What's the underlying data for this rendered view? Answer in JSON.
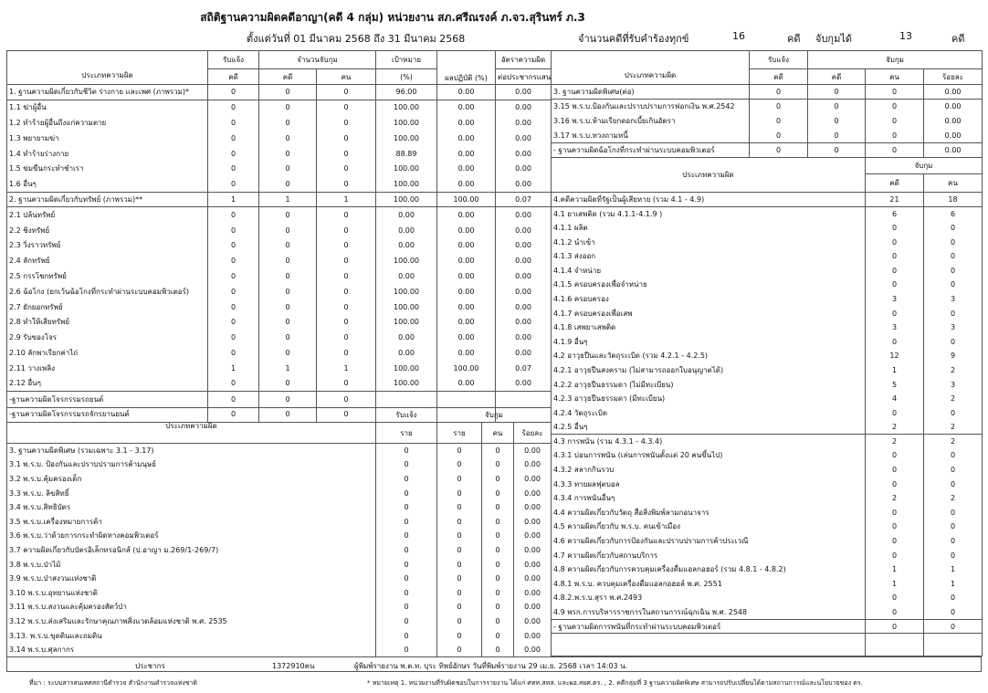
{
  "header": {
    "title": "สถิติฐานความผิดคดีอาญา(คดี 4 กลุ่ม) หน่วยงาน สภ.ศรีณรงค์ ภ.จว.สุรินทร์ ภ.3",
    "date_range": "ตั้งแต่วันที่ 01 มีนาคม 2568 ถึง 31 มีนาคม 2568",
    "total_label": "จำนวนคดีที่รับคำร้องทุกข์",
    "total_value": "16",
    "unit": "คดี",
    "arrested_label": "จับกุมได้",
    "arrested_value": "13",
    "unit2": "คดี"
  },
  "left": {
    "h": {
      "type": "ประเภทความผิด",
      "reported": "รับแจ้ง",
      "arrest": "จำนวนจับกุม",
      "target": "เป้าหมาย",
      "result": "ผลปฏิบัติ (%)",
      "rate": "อัตราความผิด",
      "rate2": "ต่อประชากรแสน",
      "cases": "คดี",
      "cases2": "คดี",
      "persons": "คน",
      "pct": "(%)"
    },
    "rows": [
      [
        "1. ฐานความผิดเกี่ยวกับชีวิต ร่างกาย และเพศ (ภาพรวม)*",
        "0",
        "0",
        "0",
        "96.00",
        "0.00",
        "0.00"
      ],
      [
        "1.1 ฆ่าผู้อื่น",
        "0",
        "0",
        "0",
        "100.00",
        "0.00",
        "0.00"
      ],
      [
        "1.2 ทำร้ายผู้อื่นถึงแก่ความตาย",
        "0",
        "0",
        "0",
        "100.00",
        "0.00",
        "0.00"
      ],
      [
        "1.3 พยายามฆ่า",
        "0",
        "0",
        "0",
        "100.00",
        "0.00",
        "0.00"
      ],
      [
        "1.4 ทำร้ายร่างกาย",
        "0",
        "0",
        "0",
        "88.89",
        "0.00",
        "0.00"
      ],
      [
        "1.5 ข่มขืนกระทำชำเรา",
        "0",
        "0",
        "0",
        "100.00",
        "0.00",
        "0.00"
      ],
      [
        "1.6 อื่นๆ",
        "0",
        "0",
        "0",
        "100.00",
        "0.00",
        "0.00"
      ],
      [
        "2. ฐานความผิดเกี่ยวกับทรัพย์ (ภาพรวม)**",
        "1",
        "1",
        "1",
        "100.00",
        "100.00",
        "0.07"
      ],
      [
        "2.1 ปล้นทรัพย์",
        "0",
        "0",
        "0",
        "0.00",
        "0.00",
        "0.00"
      ],
      [
        "2.2 ชิงทรัพย์",
        "0",
        "0",
        "0",
        "0.00",
        "0.00",
        "0.00"
      ],
      [
        "2.3 วิ่งราวทรัพย์",
        "0",
        "0",
        "0",
        "0.00",
        "0.00",
        "0.00"
      ],
      [
        "2.4 ลักทรัพย์",
        "0",
        "0",
        "0",
        "100.00",
        "0.00",
        "0.00"
      ],
      [
        "2.5 กรรโชกทรัพย์",
        "0",
        "0",
        "0",
        "0.00",
        "0.00",
        "0.00"
      ],
      [
        "2.6 ฉ้อโกง (ยกเว้นฉ้อโกงที่กระทำผ่านระบบคอมพิวเตอร์)",
        "0",
        "0",
        "0",
        "100.00",
        "0.00",
        "0.00"
      ],
      [
        "2.7 ยักยอกทรัพย์",
        "0",
        "0",
        "0",
        "100.00",
        "0.00",
        "0.00"
      ],
      [
        "2.8 ทำให้เสียทรัพย์",
        "0",
        "0",
        "0",
        "100.00",
        "0.00",
        "0.00"
      ],
      [
        "2.9 รับของโจร",
        "0",
        "0",
        "0",
        "0.00",
        "0.00",
        "0.00"
      ],
      [
        "2.10 ลักพาเรียกค่าไถ่",
        "0",
        "0",
        "0",
        "0.00",
        "0.00",
        "0.00"
      ],
      [
        "2.11 วางเพลิง",
        "1",
        "1",
        "1",
        "100.00",
        "100.00",
        "0.07"
      ],
      [
        "2.12 อื่นๆ",
        "0",
        "0",
        "0",
        "100.00",
        "0.00",
        "0.00"
      ],
      [
        "-ฐานความผิดโจรกรรมรถยนต์",
        "0",
        "0",
        "0",
        "",
        "",
        ""
      ],
      [
        "-ฐานความผิดโจรกรรมรถจักรยานยนต์",
        "0",
        "0",
        "0",
        "",
        "",
        ""
      ]
    ]
  },
  "s3": {
    "h": {
      "type": "ประเภทความผิด",
      "reported": "รับแจ้ง",
      "arrested": "จับกุม",
      "rcases": "ราย",
      "cases": "ราย",
      "persons": "คน",
      "pct": "ร้อยละ"
    },
    "rows": [
      [
        "3. ฐานความผิดพิเศษ (รวมเฉพาะ 3.1 - 3.17)",
        "0",
        "0",
        "0",
        "0.00"
      ],
      [
        "3.1 พ.ร.บ. ป้องกันและปราบปรามการค้ามนุษย์",
        "0",
        "0",
        "0",
        "0.00"
      ],
      [
        "3.2 พ.ร.บ.คุ้มครองเด็ก",
        "0",
        "0",
        "0",
        "0.00"
      ],
      [
        "3.3 พ.ร.บ. ลิขสิทธิ์",
        "0",
        "0",
        "0",
        "0.00"
      ],
      [
        "3.4 พ.ร.บ.สิทธิบัตร",
        "0",
        "0",
        "0",
        "0.00"
      ],
      [
        "3.5 พ.ร.บ.เครื่องหมายการค้า",
        "0",
        "0",
        "0",
        "0.00"
      ],
      [
        "3.6 พ.ร.บ.ว่าด้วยการกระทำผิดทางคอมพิวเตอร์",
        "0",
        "0",
        "0",
        "0.00"
      ],
      [
        "3.7 ความผิดเกี่ยวกับบัตรอิเล็กทรอนิกส์  (ป.อาญา ม.269/1-269/7)",
        "0",
        "0",
        "0",
        "0.00"
      ],
      [
        "3.8 พ.ร.บ.ป่าไม้",
        "0",
        "0",
        "0",
        "0.00"
      ],
      [
        "3.9 พ.ร.บ.ป่าสงวนแห่งชาติ",
        "0",
        "0",
        "0",
        "0.00"
      ],
      [
        "3.10 พ.ร.บ.อุทยานแห่งชาติ",
        "0",
        "0",
        "0",
        "0.00"
      ],
      [
        "3.11 พ.ร.บ.สงวนและคุ้มครองสัตว์ป่า",
        "0",
        "0",
        "0",
        "0.00"
      ],
      [
        "3.12 พ.ร.บ.ส่งเสริมและรักษาคุณภาพสิ่งแวดล้อมแห่งชาติ พ.ศ. 2535",
        "0",
        "0",
        "0",
        "0.00"
      ],
      [
        "3.13. พ.ร.บ.ขุดดินและถมดิน",
        "0",
        "0",
        "0",
        "0.00"
      ],
      [
        "3.14 พ.ร.บ.ศุลกากร",
        "0",
        "0",
        "0",
        "0.00"
      ]
    ]
  },
  "right": {
    "h": {
      "type": "ประเภทความผิด",
      "reported": "รับแจ้ง",
      "arrested": "จับกุม",
      "rcases": "คดี",
      "cases": "คดี",
      "persons": "คน",
      "pct": "ร้อยละ"
    },
    "rows": [
      [
        "3. ฐานความผิดพิเศษ(ต่อ)",
        "0",
        "0",
        "0",
        "0.00"
      ],
      [
        "3.15 พ.ร.บ.ป้องกันและปราบปรามการฟอกเงิน พ.ศ.2542",
        "0",
        "0",
        "0",
        "0.00"
      ],
      [
        "3.16 พ.ร.บ.ห้ามเรียกดอกเบี้ยเกินอัตรา",
        "0",
        "0",
        "0",
        "0.00"
      ],
      [
        "3.17 พ.ร.บ.ทวงถามหนี้",
        "0",
        "0",
        "0",
        "0.00"
      ],
      [
        "- ฐานความผิดฉ้อโกงที่กระทำผ่านระบบคอมพิวเตอร์",
        "0",
        "0",
        "0",
        "0.00"
      ]
    ]
  },
  "s4": {
    "h": {
      "type": "ประเภทความผิด",
      "arrested": "จับกุม",
      "cases": "คดี",
      "persons": "คน"
    },
    "rows": [
      [
        "4.คดีความผิดที่รัฐเป็นผู้เสียหาย (รวม 4.1 - 4.9)",
        "21",
        "18"
      ],
      [
        "4.1 ยาเสพติด (รวม 4.1.1-4.1.9 )",
        "6",
        "6"
      ],
      [
        "4.1.1 ผลิต",
        "0",
        "0"
      ],
      [
        "4.1.2 นำเข้า",
        "0",
        "0"
      ],
      [
        "4.1.3 ส่งออก",
        "0",
        "0"
      ],
      [
        "4.1.4 จำหน่าย",
        "0",
        "0"
      ],
      [
        "4.1.5 ครอบครองเพื่อจำหน่าย",
        "0",
        "0"
      ],
      [
        "4.1.6 ครอบครอง",
        "3",
        "3"
      ],
      [
        "4.1.7 ครอบครองเพื่อเสพ",
        "0",
        "0"
      ],
      [
        "4.1.8 เสพยาเสพติด",
        "3",
        "3"
      ],
      [
        "4.1.9 อื่นๆ",
        "0",
        "0"
      ],
      [
        "4.2 อาวุธปืนและวัตถุระเบิด (รวม 4.2.1 - 4.2.5)",
        "12",
        "9"
      ],
      [
        "4.2.1 อาวุธปืนสงคราม (ไม่สามารถออกใบอนุญาตได้)",
        "1",
        "2"
      ],
      [
        "4.2.2 อาวุธปืนธรรมดา (ไม่มีทะเบียน)",
        "5",
        "3"
      ],
      [
        "4.2.3 อาวุธปืนธรรมดา (มีทะเบียน)",
        "4",
        "2"
      ],
      [
        "4.2.4 วัตถุระเบิด",
        "0",
        "0"
      ],
      [
        "4.2.5 อื่นๆ",
        "2",
        "2"
      ],
      [
        "4.3 การพนัน (รวม 4.3.1 - 4.3.4)",
        "2",
        "2"
      ],
      [
        "4.3.1 บ่อนการพนัน (เล่นการพนันตั้งแต่ 20 คนขึ้นไป)",
        "0",
        "0"
      ],
      [
        "4.3.2 สลากกินรวบ",
        "0",
        "0"
      ],
      [
        "4.3.3 ทายผลฟุตบอล",
        "0",
        "0"
      ],
      [
        "4.3.4 การพนันอื่นๆ",
        "2",
        "2"
      ],
      [
        "4.4 ความผิดเกี่ยวกับวัตถุ สื่อสิ่งพิมพ์ลามกอนาจาร",
        "0",
        "0"
      ],
      [
        "4.5 ความผิดเกี่ยวกับ พ.ร.บ. คนเข้าเมือง",
        "0",
        "0"
      ],
      [
        "4.6 ความผิดเกี่ยวกับการป้องกันและปราบปรามการค้าประเวณี",
        "0",
        "0"
      ],
      [
        "4.7 ความผิดเกี่ยวกับสถานบริการ",
        "0",
        "0"
      ],
      [
        "4.8 ความผิดเกี่ยวกับการควบคุมเครื่องดื่มแอลกอฮอร์ (รวม 4.8.1 - 4.8.2)",
        "1",
        "1"
      ],
      [
        "4.8.1 พ.ร.บ. ควบคุมเครื่องดื่มแอลกอฮอล์ พ.ศ. 2551",
        "1",
        "1"
      ],
      [
        "4.8.2.พ.ร.บ.สุรา พ.ศ.2493",
        "0",
        "0"
      ],
      [
        "4.9 พรก.การบริหารราชการในสถานการณ์ฉุกเฉิน พ.ศ. 2548",
        "0",
        "0"
      ],
      [
        "- ฐานความผิดการพนันที่กระทำผ่านระบบคอมพิวเตอร์",
        "0",
        "0"
      ]
    ]
  },
  "footer": {
    "population_label": "ประชากร",
    "population_value": "1372910คน",
    "printed": "ผู้พิมพ์รายงาน พ.ต.ท. บุระ ทิพย์อักษร วันที่พิมพ์รายงาน 29 เม.ย. 2568  เวลา 14:03 น.",
    "source": "ที่มา : ระบบสารสนเทศสถานีตำรวจ  สำนักงานตำรวจแห่งชาติ",
    "note": "* หมายเหตุ   1. หน่วยงานที่รับผิดชอบในการรายงาน ได้แก่ ศทท.สทส. และผอ.สยศ.ตร. , 2. คดีกลุ่มที่ 3 ฐานความผิดพิเศษ สามารถปรับเปลี่ยนได้ตามสถานการณ์และนโยบายของ ตร."
  }
}
